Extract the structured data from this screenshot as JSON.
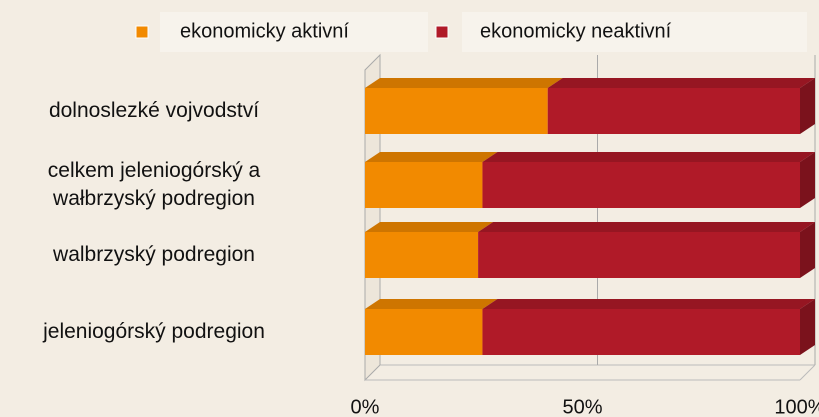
{
  "chart_data": {
    "type": "bar",
    "orientation": "horizontal",
    "stacked": true,
    "categories": [
      "dolnoslezké vojvodství",
      "celkem jeleniogórský a wałbrzyský podregion",
      "walbrzyský podregion",
      "jeleniogórský podregion"
    ],
    "series": [
      {
        "name": "ekonomicky aktivní",
        "color": "#f28a00",
        "values": [
          42,
          27,
          26,
          27
        ]
      },
      {
        "name": "ekonomicky neaktivní",
        "color": "#b01a28",
        "values": [
          58,
          73,
          74,
          73
        ]
      }
    ],
    "xlim": [
      0,
      100
    ],
    "xticks": [
      {
        "value": 0,
        "label": "0%"
      },
      {
        "value": 50,
        "label": "50%"
      },
      {
        "value": 100,
        "label": "100%"
      }
    ],
    "grid": true,
    "legend": "top"
  }
}
